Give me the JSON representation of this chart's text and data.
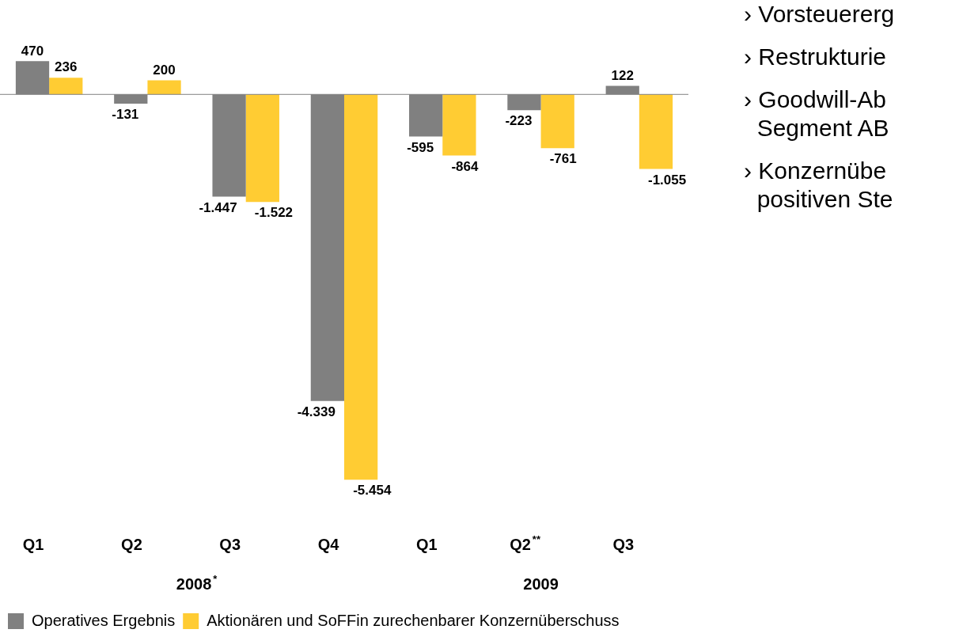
{
  "chart_data": {
    "type": "bar",
    "categories": [
      "Q1",
      "Q2",
      "Q3",
      "Q4",
      "Q1",
      "Q2$^{**}$",
      "Q3"
    ],
    "series": [
      {
        "name": "Operatives Ergebnis",
        "color": "#808080",
        "values": [
          470,
          -131,
          -1447,
          -4339,
          -595,
          -223,
          122
        ],
        "value_labels": [
          "470",
          "-131",
          "-1.447",
          "-4.339",
          "-595",
          "-223",
          "122"
        ]
      },
      {
        "name": "Aktionären und SoFFin zurechenbarer Konzernüberschuss",
        "color": "#ffcc33",
        "values": [
          236,
          200,
          -1522,
          -5454,
          -864,
          -761,
          -1055
        ],
        "value_labels": [
          "236",
          "200",
          "-1.522",
          "-5.454",
          "-864",
          "-761",
          "-1.055"
        ]
      }
    ],
    "legend": "bottom left",
    "grid": false,
    "annotations": [
      "2008$^{*}$",
      "2009",
      "› Vorsteuererg",
      "› Restrukturie",
      "› Goodwill-Ab\nSegment AB",
      "› Konzernübe\npositiven Ste"
    ]
  }
}
